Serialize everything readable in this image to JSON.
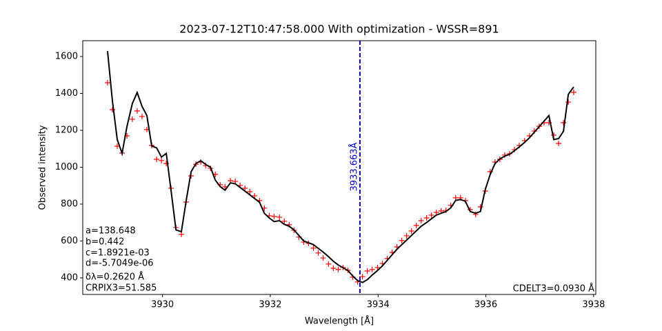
{
  "chart_data": {
    "type": "line",
    "title": "2023-07-12T10:47:58.000 With optimization - WSSR=891",
    "xlabel": "Wavelength [Å]",
    "ylabel": "Observed intensity",
    "x": [
      3928.98,
      3929.07,
      3929.16,
      3929.25,
      3929.34,
      3929.44,
      3929.53,
      3929.62,
      3929.71,
      3929.8,
      3929.89,
      3929.98,
      3930.07,
      3930.16,
      3930.25,
      3930.35,
      3930.44,
      3930.53,
      3930.62,
      3930.71,
      3930.8,
      3930.89,
      3930.98,
      3931.07,
      3931.16,
      3931.26,
      3931.35,
      3931.44,
      3931.53,
      3931.62,
      3931.71,
      3931.8,
      3931.89,
      3931.98,
      3932.07,
      3932.17,
      3932.26,
      3932.35,
      3932.44,
      3932.53,
      3932.62,
      3932.71,
      3932.8,
      3932.89,
      3932.98,
      3933.08,
      3933.17,
      3933.26,
      3933.35,
      3933.44,
      3933.53,
      3933.62,
      3933.71,
      3933.8,
      3933.89,
      3933.99,
      3934.08,
      3934.17,
      3934.26,
      3934.35,
      3934.44,
      3934.53,
      3934.62,
      3934.71,
      3934.8,
      3934.9,
      3934.99,
      3935.08,
      3935.17,
      3935.26,
      3935.35,
      3935.44,
      3935.53,
      3935.62,
      3935.71,
      3935.81,
      3935.9,
      3935.99,
      3936.08,
      3936.17,
      3936.26,
      3936.35,
      3936.44,
      3936.53,
      3936.62,
      3936.72,
      3936.81,
      3936.9,
      3936.99,
      3937.08,
      3937.17,
      3937.26,
      3937.35,
      3937.44,
      3937.53,
      3937.63
    ],
    "series": [
      {
        "color": "#ff0000",
        "style": "marker",
        "values": [
          1458,
          1312,
          1114,
          1077,
          1170,
          1260,
          1305,
          1275,
          1204,
          1118,
          1043,
          1036,
          1020,
          886,
          673,
          636,
          811,
          953,
          1016,
          1028,
          1009,
          994,
          961,
          905,
          894,
          927,
          923,
          901,
          886,
          867,
          845,
          819,
          778,
          737,
          733,
          729,
          707,
          688,
          658,
          621,
          594,
          587,
          561,
          535,
          508,
          475,
          452,
          445,
          456,
          441,
          404,
          378,
          407,
          437,
          445,
          456,
          478,
          505,
          538,
          568,
          602,
          628,
          654,
          684,
          710,
          725,
          740,
          755,
          763,
          766,
          793,
          834,
          834,
          819,
          770,
          744,
          785,
          871,
          976,
          1028,
          1043,
          1066,
          1073,
          1095,
          1118,
          1144,
          1170,
          1196,
          1222,
          1241,
          1241,
          1174,
          1129,
          1241,
          1353,
          1406
        ]
      },
      {
        "color": "#000000",
        "style": "line",
        "values": [
          1630,
          1360,
          1150,
          1075,
          1220,
          1345,
          1405,
          1330,
          1280,
          1115,
          1105,
          1055,
          1075,
          870,
          660,
          650,
          820,
          975,
          1020,
          1035,
          1015,
          1000,
          930,
          895,
          875,
          915,
          910,
          890,
          870,
          850,
          830,
          810,
          750,
          725,
          705,
          710,
          690,
          680,
          660,
          630,
          600,
          590,
          580,
          560,
          540,
          515,
          490,
          470,
          455,
          440,
          410,
          385,
          375,
          390,
          415,
          440,
          465,
          495,
          525,
          555,
          580,
          605,
          630,
          655,
          680,
          700,
          720,
          740,
          750,
          760,
          780,
          820,
          825,
          815,
          760,
          750,
          760,
          880,
          960,
          1020,
          1045,
          1060,
          1070,
          1090,
          1110,
          1135,
          1160,
          1190,
          1220,
          1250,
          1280,
          1150,
          1155,
          1195,
          1395,
          1435
        ]
      }
    ],
    "vline": {
      "x": 3933.663,
      "label": "3933.663Å",
      "color": "#0000cc"
    },
    "annotations": [
      "a=138.648",
      "b=0.442",
      "c=1.8921e-03",
      "d=-5.7049e-06",
      "δλ=0.2620 Å",
      "CRPIX3=51.585"
    ],
    "annotation_right": "CDELT3=0.0930 Å",
    "xlim": [
      3928.52,
      3938.04
    ],
    "ylim": [
      310,
      1686
    ],
    "xticks": [
      3930,
      3932,
      3934,
      3936,
      3938
    ],
    "yticks": [
      400,
      600,
      800,
      1000,
      1200,
      1400,
      1600
    ]
  }
}
